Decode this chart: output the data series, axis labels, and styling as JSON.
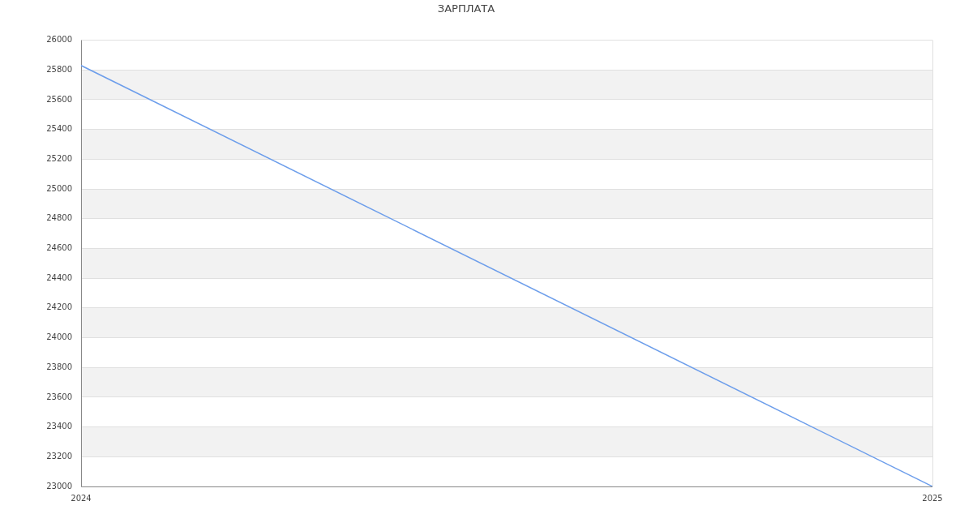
{
  "chart_data": {
    "type": "line",
    "title": "ЗАРПЛАТА",
    "x": [
      2024,
      2025
    ],
    "series": [
      {
        "color": "#6d9eeb",
        "values": [
          25830,
          23000
        ]
      }
    ],
    "xlim": [
      2024,
      2025
    ],
    "xticks": [
      2024,
      2025
    ],
    "ylim": [
      23000,
      26000
    ],
    "yticks": [
      23000,
      23200,
      23400,
      23600,
      23800,
      24000,
      24200,
      24400,
      24600,
      24800,
      25000,
      25200,
      25400,
      25600,
      25800,
      26000
    ],
    "grid": true,
    "marker": "none",
    "line_style": "solid"
  }
}
